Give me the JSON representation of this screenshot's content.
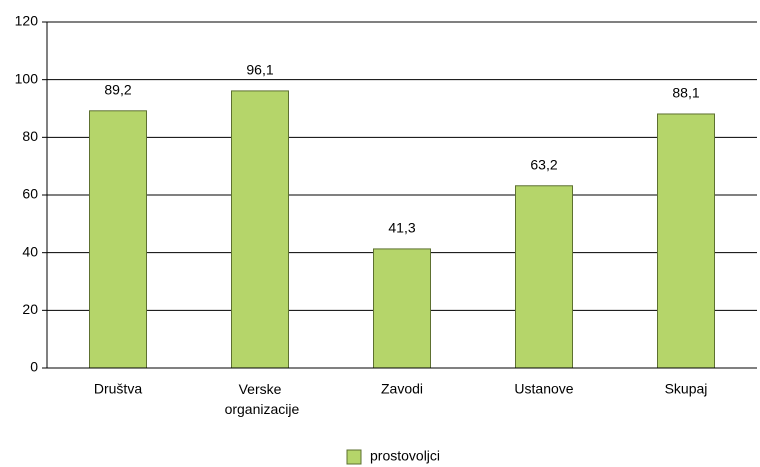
{
  "chart_data": {
    "type": "bar",
    "categories": [
      "Društva",
      "Verske organizacije",
      "Zavodi",
      "Ustanove",
      "Skupaj"
    ],
    "series": [
      {
        "name": "prostovoljci",
        "color": "#b5d56a",
        "values": [
          89.2,
          96.1,
          41.3,
          63.2,
          88.1
        ],
        "value_labels": [
          "89,2",
          "96,1",
          "41,3",
          "63,2",
          "88,1"
        ]
      }
    ],
    "ylim": [
      0,
      120
    ],
    "yticks": [
      0,
      20,
      40,
      60,
      80,
      100,
      120
    ],
    "grid": true,
    "legend": "bottom"
  }
}
